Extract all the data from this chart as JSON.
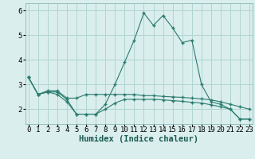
{
  "xlabel": "Humidex (Indice chaleur)",
  "x": [
    0,
    1,
    2,
    3,
    4,
    5,
    6,
    7,
    8,
    9,
    10,
    11,
    12,
    13,
    14,
    15,
    16,
    17,
    18,
    19,
    20,
    21,
    22,
    23
  ],
  "line1": [
    3.3,
    2.6,
    2.7,
    2.7,
    2.4,
    1.8,
    1.8,
    1.8,
    2.2,
    3.0,
    3.9,
    4.8,
    5.9,
    5.4,
    5.8,
    5.3,
    4.7,
    4.8,
    3.0,
    2.3,
    2.2,
    2.0,
    1.6,
    1.6
  ],
  "line2": [
    3.3,
    2.6,
    2.75,
    2.75,
    2.45,
    2.45,
    2.6,
    2.6,
    2.6,
    2.6,
    2.6,
    2.6,
    2.55,
    2.55,
    2.52,
    2.5,
    2.48,
    2.45,
    2.42,
    2.38,
    2.3,
    2.2,
    2.1,
    2.0
  ],
  "line3": [
    3.3,
    2.6,
    2.7,
    2.6,
    2.3,
    1.8,
    1.8,
    1.8,
    2.0,
    2.25,
    2.4,
    2.4,
    2.4,
    2.4,
    2.38,
    2.35,
    2.32,
    2.28,
    2.25,
    2.18,
    2.1,
    2.0,
    1.6,
    1.6
  ],
  "color": "#2a7b6f",
  "bg_color": "#daeeed",
  "grid_color": "#b0d5d2",
  "ylim": [
    1.4,
    6.3
  ],
  "xlim": [
    -0.3,
    23.3
  ],
  "yticks": [
    2,
    3,
    4,
    5,
    6
  ],
  "tick_fontsize": 6.5,
  "label_fontsize": 7.5
}
